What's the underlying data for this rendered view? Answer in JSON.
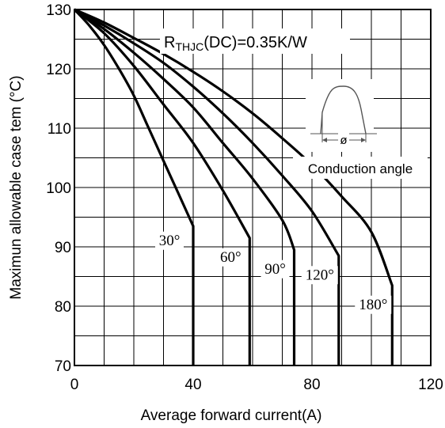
{
  "chart_data": {
    "type": "line",
    "title": "",
    "xlabel": "Average forward current(A)",
    "ylabel": "Maximun allowable case tem (°C)",
    "xlim": [
      0,
      120
    ],
    "ylim": [
      70,
      130
    ],
    "x_tick_labels": [
      "0",
      "40",
      "80",
      "120"
    ],
    "y_tick_labels": [
      "70",
      "80",
      "90",
      "100",
      "110",
      "120",
      "130"
    ],
    "grid": true,
    "series": [
      {
        "name": "30°",
        "x": [
          0,
          5,
          10,
          15,
          20,
          25,
          30,
          35,
          40,
          40
        ],
        "y": [
          130,
          127.3,
          124,
          120,
          115.5,
          110,
          104.5,
          99,
          93.5,
          70
        ]
      },
      {
        "name": "60°",
        "x": [
          0,
          10,
          20,
          30,
          40,
          50,
          59,
          59
        ],
        "y": [
          130,
          126,
          120.5,
          114,
          107.5,
          99.5,
          91.5,
          70
        ]
      },
      {
        "name": "90°",
        "x": [
          0,
          10,
          20,
          30,
          40,
          50,
          60,
          70,
          74,
          74
        ],
        "y": [
          130,
          126.7,
          122.7,
          118.3,
          113.5,
          107.5,
          101.5,
          94.5,
          89.5,
          70
        ]
      },
      {
        "name": "120°",
        "x": [
          0,
          10,
          20,
          30,
          40,
          50,
          60,
          70,
          80,
          89,
          89
        ],
        "y": [
          130,
          127.3,
          124.3,
          121,
          117,
          112.5,
          107.5,
          102,
          96,
          88.5,
          70
        ]
      },
      {
        "name": "180°",
        "x": [
          0,
          10,
          20,
          30,
          40,
          50,
          60,
          70,
          80,
          90,
          100,
          107,
          107
        ],
        "y": [
          130,
          127.8,
          125.2,
          122.5,
          119.5,
          116.2,
          112.5,
          108.3,
          103.8,
          98.5,
          92.5,
          83.5,
          70
        ]
      }
    ],
    "annotations": {
      "rthjc": "RTHJC(DC)=0.35K/W",
      "rthjc_main": "R",
      "rthjc_sub": "THJC",
      "rthjc_tail": "(DC)=0.35K/W",
      "phi": "ø",
      "conduction": "Conduction angle"
    }
  }
}
